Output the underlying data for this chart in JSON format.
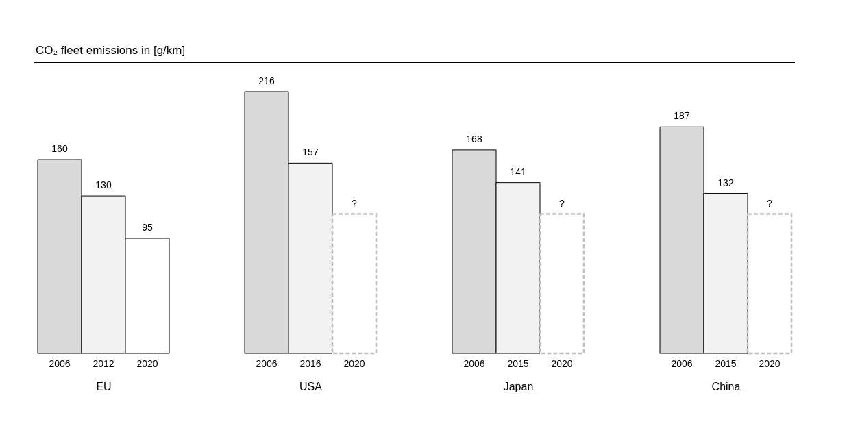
{
  "chart_data": [
    {
      "type": "bar",
      "title": "CO₂ fleet emissions in [g/km]",
      "xlabel": "EU",
      "categories": [
        "2006",
        "2012",
        "2020"
      ],
      "series": [
        {
          "colors": [
            "#d9d9d9",
            "#f2f2f2",
            "#ffffff"
          ],
          "values": [
            160,
            130,
            95
          ],
          "value_labels": [
            "160",
            "130",
            "95"
          ]
        }
      ]
    },
    {
      "type": "bar",
      "xlabel": "USA",
      "categories": [
        "2006",
        "2016",
        "2020"
      ],
      "series": [
        {
          "colors": [
            "#d9d9d9",
            "#f2f2f2",
            null
          ],
          "values": [
            216,
            157,
            null
          ],
          "value_labels": [
            "216",
            "157",
            null
          ]
        },
        {
          "color": "#ffffff",
          "line_style": "dashed",
          "values": [
            null,
            null,
            115
          ],
          "value_labels": [
            null,
            null,
            "?"
          ]
        }
      ]
    },
    {
      "type": "bar",
      "xlabel": "Japan",
      "categories": [
        "2006",
        "2015",
        "2020"
      ],
      "series": [
        {
          "colors": [
            "#d9d9d9",
            "#f2f2f2",
            null
          ],
          "values": [
            168,
            141,
            null
          ],
          "value_labels": [
            "168",
            "141",
            null
          ]
        },
        {
          "color": "#ffffff",
          "line_style": "dashed",
          "values": [
            null,
            null,
            115
          ],
          "value_labels": [
            null,
            null,
            "?"
          ]
        }
      ]
    },
    {
      "type": "bar",
      "xlabel": "China",
      "categories": [
        "2006",
        "2015",
        "2020"
      ],
      "series": [
        {
          "colors": [
            "#d9d9d9",
            "#f2f2f2",
            null
          ],
          "values": [
            187,
            132,
            null
          ],
          "value_labels": [
            "187",
            "132",
            null
          ]
        },
        {
          "color": "#ffffff",
          "line_style": "dashed",
          "values": [
            null,
            null,
            115
          ],
          "value_labels": [
            null,
            null,
            "?"
          ]
        }
      ]
    }
  ]
}
